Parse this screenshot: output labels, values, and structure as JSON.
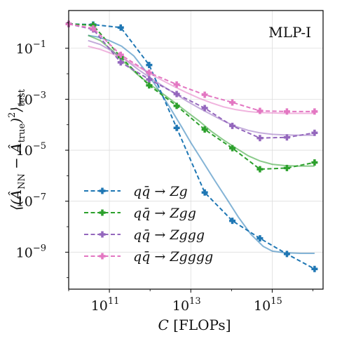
{
  "chart_data": {
    "type": "line",
    "title": "MLP-I",
    "xlabel": "C [FLOPs]",
    "ylabel": "⟨(Â_NN − Â_true)²⟩_test",
    "xscale": "log",
    "yscale": "log",
    "xlim": [
      10000000000.0,
      1e+16
    ],
    "ylim": [
      1e-10,
      1
    ],
    "x_ticks": [
      100000000000.0,
      10000000000000.0,
      1000000000000000.0
    ],
    "x_tick_labels": [
      "10",
      "10",
      "10"
    ],
    "x_tick_exponents": [
      "11",
      "13",
      "15"
    ],
    "y_ticks": [
      1e-09,
      1e-07,
      1e-05,
      0.001,
      0.1
    ],
    "y_tick_labels": [
      "10",
      "10",
      "10",
      "10",
      "10"
    ],
    "y_tick_exponents": [
      "−9",
      "−7",
      "−5",
      "−3",
      "−1"
    ],
    "grid": true,
    "legend_position": "lower-left",
    "series": [
      {
        "name": "qq̄ → Zg",
        "color": "#1f77b4",
        "x": [
          10000000000.0,
          40000000000.0,
          190000000000.0,
          950000000000.0,
          4500000000000.0,
          22000000000000.0,
          105000000000000.0,
          500000000000000.0,
          2300000000000000.0,
          1.1e+16
        ],
        "y": [
          0.9,
          0.85,
          0.65,
          0.022,
          7.5e-05,
          2.2e-07,
          1.7e-08,
          3.5e-09,
          8.5e-10,
          2.2e-10
        ],
        "fit_x": [
          30000000000.0,
          50000000000.0,
          100000000000.0,
          200000000000.0,
          400000000000.0,
          800000000000.0,
          1500000000000.0,
          3000000000000.0,
          6000000000000.0,
          10000000000000.0,
          20000000000000.0,
          40000000000000.0,
          80000000000000.0,
          150000000000000.0,
          300000000000000.0,
          600000000000000.0,
          1000000000000000.0,
          2000000000000000.0,
          5000000000000000.0,
          1.1e+16
        ],
        "fit_y": [
          0.32,
          0.28,
          0.2,
          0.12,
          0.05,
          0.012,
          0.0028,
          0.0005,
          8e-05,
          2e-05,
          3.5e-06,
          6e-07,
          1.1e-07,
          2.3e-08,
          5e-09,
          1.7e-09,
          1.1e-09,
          9.5e-10,
          9e-10,
          9e-10
        ]
      },
      {
        "name": "qq̄ → Zgg",
        "color": "#2ca02c",
        "x": [
          10000000000.0,
          40000000000.0,
          190000000000.0,
          950000000000.0,
          4500000000000.0,
          22000000000000.0,
          105000000000000.0,
          500000000000000.0,
          2300000000000000.0,
          1.1e+16
        ],
        "y": [
          0.9,
          0.8,
          0.045,
          0.0035,
          0.00055,
          6.5e-05,
          1.2e-05,
          1.8e-06,
          2e-06,
          3.3e-06
        ],
        "fit_x": [
          30000000000.0,
          60000000000.0,
          120000000000.0,
          250000000000.0,
          500000000000.0,
          1000000000000.0,
          2000000000000.0,
          4000000000000.0,
          8000000000000.0,
          16000000000000.0,
          32000000000000.0,
          64000000000000.0,
          130000000000000.0,
          260000000000000.0,
          500000000000000.0,
          1000000000000000.0,
          2000000000000000.0,
          4000000000000000.0,
          1.1e+16
        ],
        "fit_y": [
          0.32,
          0.2,
          0.08,
          0.025,
          0.009,
          0.0038,
          0.0017,
          0.00075,
          0.00032,
          0.00014,
          5.5e-05,
          2.5e-05,
          1.2e-05,
          6e-06,
          3.8e-06,
          2.8e-06,
          2.5e-06,
          2.4e-06,
          2.4e-06
        ]
      },
      {
        "name": "qq̄ → Zggg",
        "color": "#9467bd",
        "x": [
          10000000000.0,
          40000000000.0,
          190000000000.0,
          950000000000.0,
          4500000000000.0,
          22000000000000.0,
          105000000000000.0,
          500000000000000.0,
          2300000000000000.0,
          1.1e+16
        ],
        "y": [
          0.9,
          0.55,
          0.028,
          0.006,
          0.0016,
          0.00045,
          9e-05,
          3e-05,
          3.2e-05,
          4.8e-05
        ],
        "fit_x": [
          30000000000.0,
          60000000000.0,
          120000000000.0,
          250000000000.0,
          500000000000.0,
          1000000000000.0,
          2000000000000.0,
          4000000000000.0,
          8000000000000.0,
          16000000000000.0,
          32000000000000.0,
          64000000000000.0,
          130000000000000.0,
          260000000000000.0,
          500000000000000.0,
          1000000000000000.0,
          2000000000000000.0,
          4000000000000000.0,
          1.1e+16
        ],
        "fit_y": [
          0.2,
          0.14,
          0.075,
          0.035,
          0.015,
          0.007,
          0.0034,
          0.0017,
          0.00085,
          0.00045,
          0.00025,
          0.00014,
          8.5e-05,
          6e-05,
          4.8e-05,
          4.2e-05,
          4e-05,
          3.9e-05,
          3.9e-05
        ]
      },
      {
        "name": "qq̄ → Zgggg",
        "color": "#e377c2",
        "x": [
          10000000000.0,
          40000000000.0,
          190000000000.0,
          950000000000.0,
          4500000000000.0,
          22000000000000.0,
          105000000000000.0,
          500000000000000.0,
          2300000000000000.0,
          1.1e+16
        ],
        "y": [
          0.9,
          0.6,
          0.055,
          0.011,
          0.0038,
          0.0015,
          0.00075,
          0.00035,
          0.00033,
          0.00033
        ],
        "fit_x": [
          30000000000.0,
          60000000000.0,
          120000000000.0,
          250000000000.0,
          500000000000.0,
          1000000000000.0,
          2000000000000.0,
          4000000000000.0,
          8000000000000.0,
          16000000000000.0,
          32000000000000.0,
          64000000000000.0,
          130000000000000.0,
          260000000000000.0,
          500000000000000.0,
          1000000000000000.0,
          2000000000000000.0,
          4000000000000000.0,
          1.1e+16
        ],
        "fit_y": [
          0.12,
          0.09,
          0.06,
          0.035,
          0.019,
          0.01,
          0.0055,
          0.0031,
          0.0018,
          0.0011,
          0.00072,
          0.0005,
          0.00039,
          0.00033,
          0.0003,
          0.00029,
          0.00028,
          0.00028,
          0.00028
        ]
      }
    ]
  }
}
